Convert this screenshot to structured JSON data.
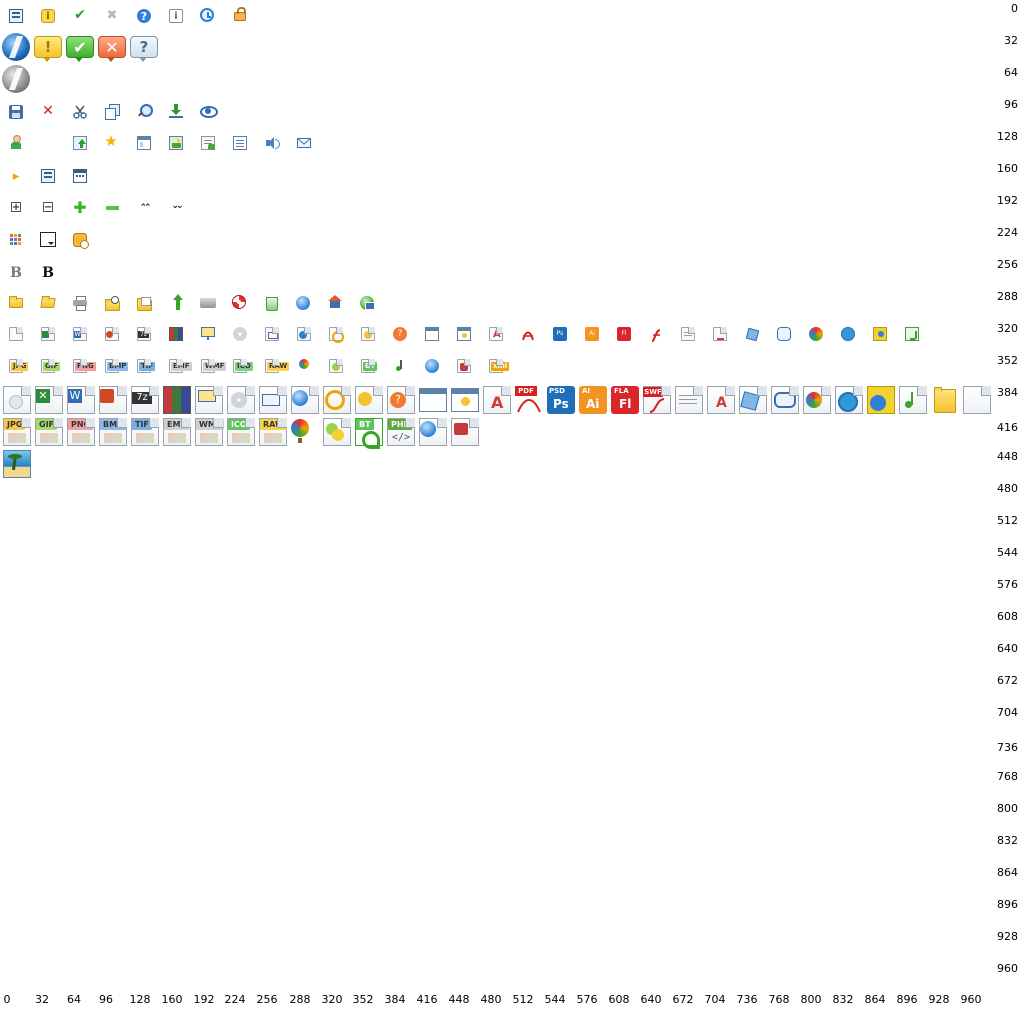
{
  "y_labels": [
    "0",
    "32",
    "64",
    "96",
    "128",
    "160",
    "192",
    "224",
    "256",
    "288",
    "320",
    "352",
    "384",
    "416",
    "448",
    "480",
    "512",
    "544",
    "576",
    "608",
    "640",
    "672",
    "704",
    "736",
    "768",
    "800",
    "832",
    "864",
    "896",
    "928",
    "960"
  ],
  "x_labels": [
    "0",
    "32",
    "64",
    "96",
    "128",
    "160",
    "192",
    "224",
    "256",
    "288",
    "320",
    "352",
    "384",
    "416",
    "448",
    "480",
    "512",
    "544",
    "576",
    "608",
    "640",
    "672",
    "704",
    "736",
    "768",
    "800",
    "832",
    "864",
    "896",
    "928",
    "960"
  ],
  "row0": {
    "icons": [
      "list-icon",
      "info-yellow-icon",
      "check-icon",
      "cross-gray-icon",
      "help-icon",
      "info-icon",
      "clock-icon",
      "lock-icon"
    ],
    "info_glyph": "i",
    "check_glyph": "✔",
    "cross_glyph": "✖",
    "help_glyph": "?",
    "info2_glyph": "i"
  },
  "row1": {
    "warn_glyph": "!",
    "ok_glyph": "✔",
    "close_glyph": "✕",
    "q_glyph": "?"
  },
  "row3": {
    "delete_glyph": "✕"
  },
  "row5": {
    "play_glyph": "▸"
  },
  "row6": {
    "plus_glyph": "+",
    "minus_glyph": "−",
    "green_plus_glyph": "✚",
    "up_glyph": "⌃⌃",
    "down_glyph": "⌄⌄"
  },
  "row8": {
    "bold_gray": "B",
    "bold_black": "B"
  },
  "row10_tags": [
    "",
    "",
    "W",
    "",
    "7z",
    "",
    "",
    "",
    "",
    "",
    "",
    "",
    "",
    "",
    "",
    "Ps",
    "Ai",
    "Fl",
    "",
    "",
    "A",
    "",
    "",
    "",
    "",
    "",
    ""
  ],
  "row11_tags": [
    "JPG",
    "GIF",
    "PNG",
    "BMP",
    "TIF",
    "EMF",
    "WMF",
    "ICO",
    "RAW",
    "",
    "",
    "BT",
    "",
    "",
    "",
    ""
  ],
  "row12": {
    "psd_label": "PSD",
    "ps_label": "Ps",
    "ai_label": "AI",
    "ai2_label": "Ai",
    "fla_label": "FLA",
    "fl_label": "Fl",
    "pdf_label": "PDF",
    "swf_label": "SWF",
    "sevenz_label": "7z",
    "w_label": "W",
    "a_label": "A"
  },
  "row13_tags": [
    "JPG",
    "GIF",
    "PNG",
    "BMP",
    "TIF",
    "EMF",
    "WMF",
    "ICO",
    "RAW",
    "",
    "",
    "BT",
    "PHP"
  ],
  "row13": {
    "code_glyph": "</>"
  }
}
